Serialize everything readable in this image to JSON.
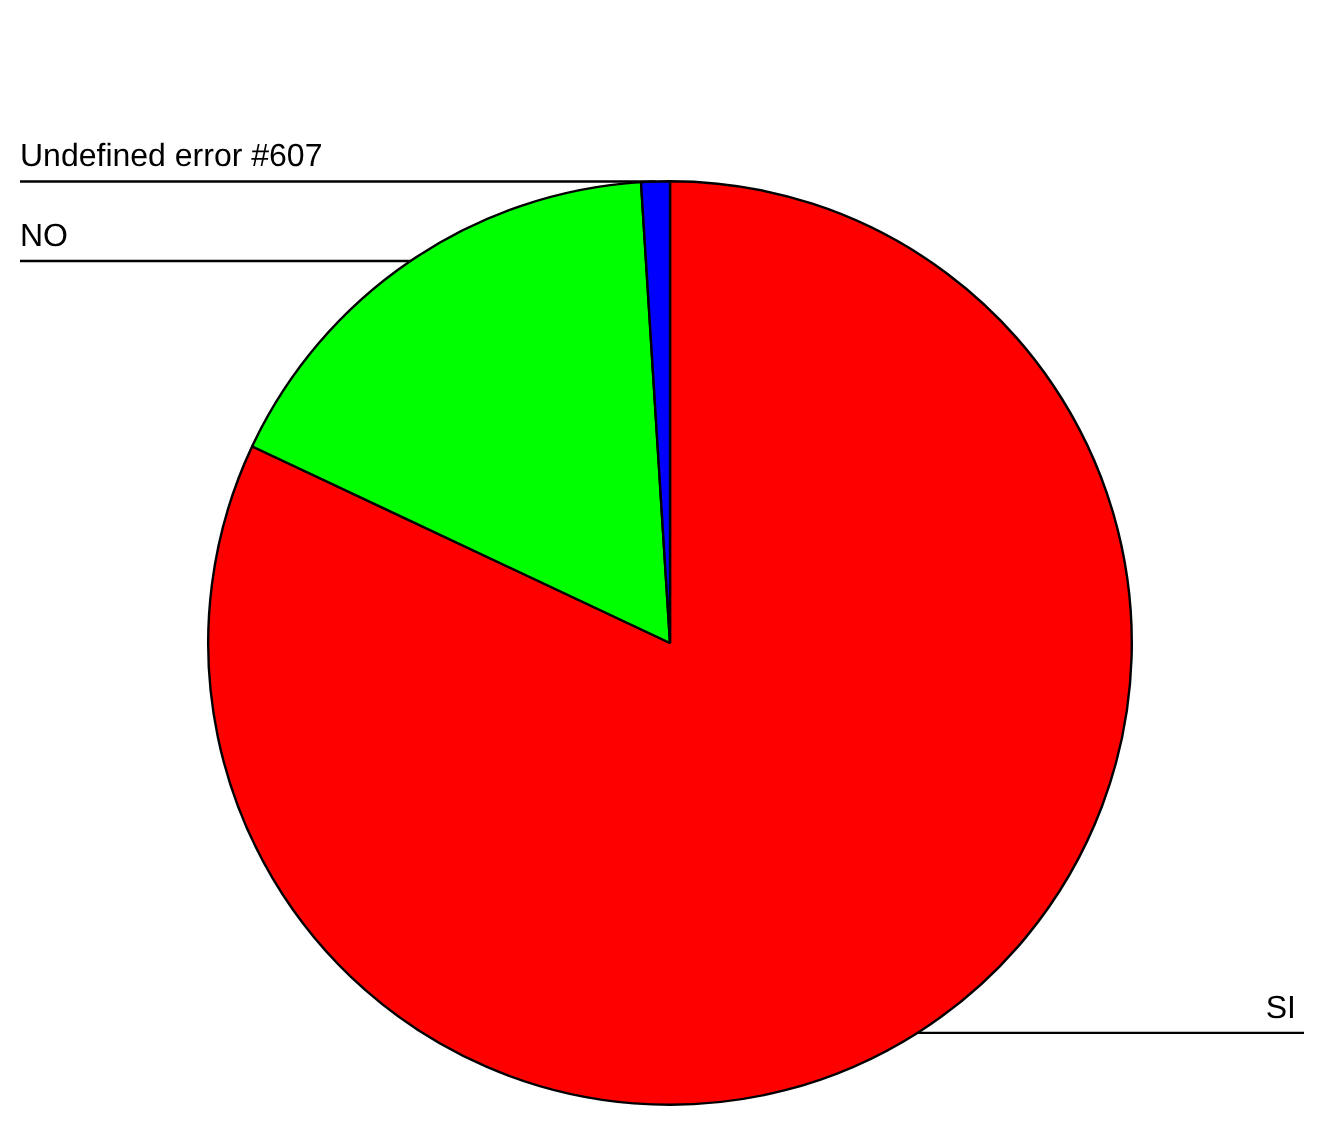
{
  "chart_data": {
    "type": "pie",
    "categories": [
      "SI",
      "NO",
      "Undefined error #607"
    ],
    "values": [
      82,
      17,
      1
    ],
    "colors": [
      "#ff0000",
      "#00ff00",
      "#0000ff"
    ],
    "legend": false
  }
}
